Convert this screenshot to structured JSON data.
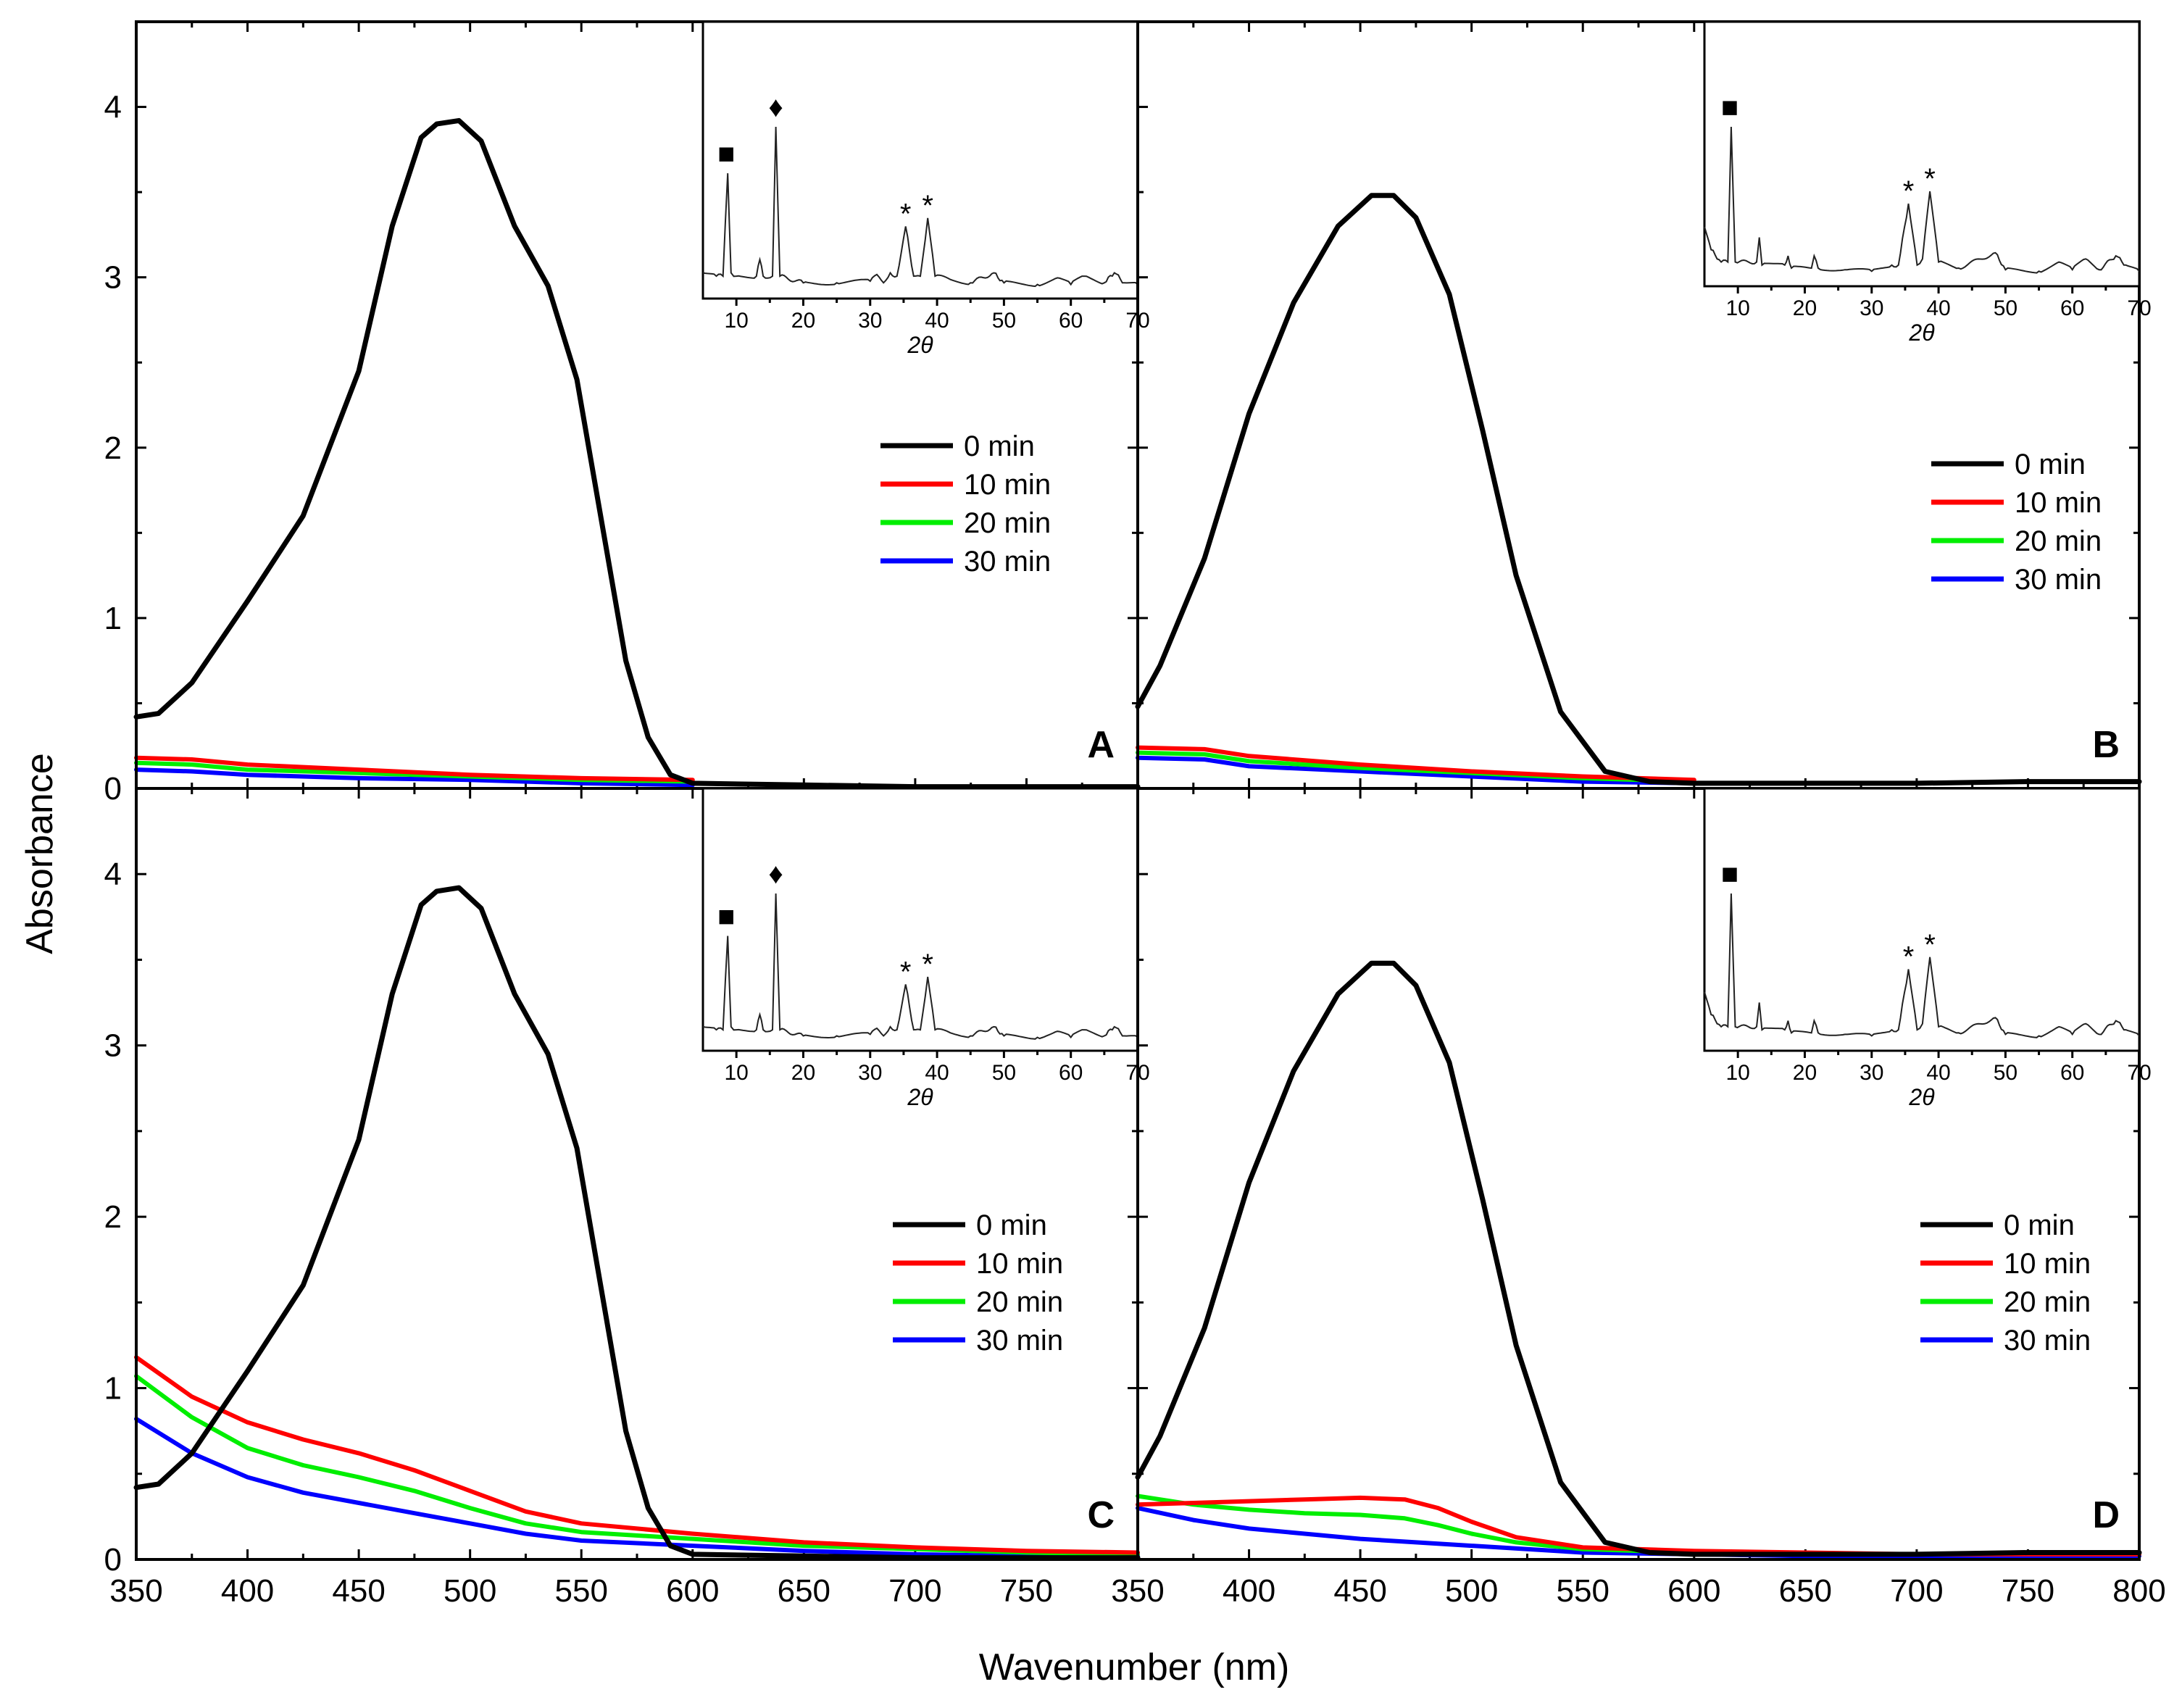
{
  "figure": {
    "xlabel": "Wavenumber (nm)",
    "ylabel": "Absorbance"
  },
  "colors": {
    "0 min": "#000000",
    "10 min": "#ff0000",
    "20 min": "#00ee00",
    "30 min": "#0000ff"
  },
  "chart_data": [
    {
      "panel": "A",
      "type": "line",
      "xlim": [
        350,
        800
      ],
      "ylim": [
        0,
        4.5
      ],
      "xticks": [],
      "yticks": [
        "0",
        "1",
        "2",
        "3",
        "4"
      ],
      "legend": [
        "0 min",
        "10 min",
        "20 min",
        "30 min"
      ],
      "series": [
        {
          "name": "0 min",
          "x": [
            350,
            360,
            375,
            400,
            425,
            450,
            465,
            478,
            485,
            495,
            505,
            520,
            535,
            548,
            560,
            570,
            580,
            590,
            600,
            650,
            700,
            800
          ],
          "y": [
            0.42,
            0.44,
            0.62,
            1.1,
            1.6,
            2.45,
            3.3,
            3.82,
            3.9,
            3.92,
            3.8,
            3.3,
            2.95,
            2.4,
            1.5,
            0.75,
            0.3,
            0.08,
            0.03,
            0.02,
            0.01,
            0.01
          ]
        },
        {
          "name": "10 min",
          "x": [
            350,
            375,
            400,
            450,
            500,
            550,
            600
          ],
          "y": [
            0.18,
            0.17,
            0.14,
            0.11,
            0.08,
            0.06,
            0.05
          ]
        },
        {
          "name": "20 min",
          "x": [
            350,
            375,
            400,
            450,
            500,
            550,
            600
          ],
          "y": [
            0.15,
            0.14,
            0.11,
            0.09,
            0.07,
            0.05,
            0.04
          ]
        },
        {
          "name": "30 min",
          "x": [
            350,
            375,
            400,
            450,
            500,
            550,
            600
          ],
          "y": [
            0.11,
            0.1,
            0.08,
            0.06,
            0.05,
            0.03,
            0.02
          ]
        }
      ],
      "inset": {
        "type": "line",
        "xlabel": "2θ",
        "xlim": [
          5,
          70
        ],
        "xticks": [
          "10",
          "20",
          "30",
          "40",
          "50",
          "60",
          "70"
        ],
        "x": [
          5,
          7,
          8,
          8.7,
          9.2,
          10,
          13,
          13.5,
          14,
          15.4,
          15.9,
          16.5,
          20,
          25,
          30,
          31,
          32,
          33,
          34,
          35.3,
          36.5,
          37.5,
          38.6,
          39.7,
          42,
          45,
          48.5,
          50,
          55,
          58,
          60,
          62,
          65,
          66.5,
          68,
          70
        ],
        "y": [
          0.12,
          0.1,
          0.1,
          0.72,
          0.12,
          0.1,
          0.1,
          0.2,
          0.1,
          0.1,
          1.0,
          0.1,
          0.06,
          0.06,
          0.07,
          0.11,
          0.06,
          0.12,
          0.1,
          0.4,
          0.1,
          0.1,
          0.45,
          0.1,
          0.08,
          0.06,
          0.12,
          0.06,
          0.05,
          0.09,
          0.05,
          0.1,
          0.06,
          0.12,
          0.06,
          0.05
        ],
        "markers": [
          {
            "symbol": "■",
            "x": 8.7,
            "y": 0.72
          },
          {
            "symbol": "♦",
            "x": 15.9,
            "y": 1.0
          },
          {
            "symbol": "*",
            "x": 35.3,
            "y": 0.4
          },
          {
            "symbol": "*",
            "x": 38.6,
            "y": 0.45
          }
        ]
      }
    },
    {
      "panel": "B",
      "type": "line",
      "xlim": [
        350,
        800
      ],
      "ylim": [
        0,
        4.5
      ],
      "xticks": [],
      "yticks": [],
      "legend": [
        "0 min",
        "10 min",
        "20 min",
        "30 min"
      ],
      "series": [
        {
          "name": "0 min",
          "x": [
            350,
            360,
            380,
            400,
            420,
            440,
            455,
            465,
            475,
            490,
            505,
            520,
            540,
            560,
            580,
            600,
            650,
            700,
            750,
            800
          ],
          "y": [
            0.48,
            0.72,
            1.35,
            2.2,
            2.85,
            3.3,
            3.48,
            3.48,
            3.35,
            2.9,
            2.1,
            1.25,
            0.45,
            0.1,
            0.04,
            0.03,
            0.03,
            0.03,
            0.04,
            0.04
          ]
        },
        {
          "name": "10 min",
          "x": [
            350,
            380,
            400,
            450,
            500,
            550,
            600
          ],
          "y": [
            0.24,
            0.23,
            0.19,
            0.14,
            0.1,
            0.07,
            0.05
          ]
        },
        {
          "name": "20 min",
          "x": [
            350,
            380,
            400,
            450,
            500,
            550,
            600
          ],
          "y": [
            0.21,
            0.2,
            0.16,
            0.12,
            0.09,
            0.06,
            0.04
          ]
        },
        {
          "name": "30 min",
          "x": [
            350,
            380,
            400,
            450,
            500,
            550,
            600
          ],
          "y": [
            0.18,
            0.17,
            0.13,
            0.1,
            0.07,
            0.04,
            0.03
          ]
        }
      ],
      "inset": {
        "type": "line",
        "xlabel": "2θ",
        "xlim": [
          5,
          70
        ],
        "xticks": [
          "10",
          "20",
          "30",
          "40",
          "50",
          "60",
          "70"
        ],
        "x": [
          5,
          6,
          7.5,
          8.5,
          9,
          9.6,
          12.8,
          13.2,
          13.6,
          17,
          17.5,
          18,
          21,
          21.4,
          22,
          26,
          30,
          33,
          34,
          35.5,
          36.8,
          37.6,
          38.7,
          40,
          43,
          48.5,
          50,
          55,
          58,
          60,
          62,
          64,
          66.5,
          68,
          70
        ],
        "y": [
          0.35,
          0.2,
          0.12,
          0.12,
          1.0,
          0.12,
          0.12,
          0.28,
          0.1,
          0.1,
          0.16,
          0.08,
          0.08,
          0.16,
          0.08,
          0.07,
          0.06,
          0.1,
          0.1,
          0.5,
          0.1,
          0.14,
          0.58,
          0.12,
          0.08,
          0.18,
          0.07,
          0.06,
          0.12,
          0.07,
          0.14,
          0.07,
          0.16,
          0.1,
          0.06
        ],
        "markers": [
          {
            "symbol": "■",
            "x": 9.0,
            "y": 1.0
          },
          {
            "symbol": "*",
            "x": 35.5,
            "y": 0.5
          },
          {
            "symbol": "*",
            "x": 38.7,
            "y": 0.58
          }
        ]
      }
    },
    {
      "panel": "C",
      "type": "line",
      "xlim": [
        350,
        800
      ],
      "ylim": [
        0,
        4.5
      ],
      "xticks": [
        "350",
        "400",
        "450",
        "500",
        "550",
        "600",
        "650",
        "700",
        "750"
      ],
      "yticks": [
        "0",
        "1",
        "2",
        "3",
        "4"
      ],
      "legend": [
        "0 min",
        "10 min",
        "20 min",
        "30 min"
      ],
      "series": [
        {
          "name": "0 min",
          "x": [
            350,
            360,
            375,
            400,
            425,
            450,
            465,
            478,
            485,
            495,
            505,
            520,
            535,
            548,
            560,
            570,
            580,
            590,
            600,
            650,
            700,
            800
          ],
          "y": [
            0.42,
            0.44,
            0.62,
            1.1,
            1.6,
            2.45,
            3.3,
            3.82,
            3.9,
            3.92,
            3.8,
            3.3,
            2.95,
            2.4,
            1.5,
            0.75,
            0.3,
            0.08,
            0.03,
            0.02,
            0.01,
            0.01
          ]
        },
        {
          "name": "10 min",
          "x": [
            350,
            375,
            400,
            425,
            450,
            475,
            500,
            525,
            550,
            600,
            650,
            700,
            750,
            800
          ],
          "y": [
            1.18,
            0.95,
            0.8,
            0.7,
            0.62,
            0.52,
            0.4,
            0.28,
            0.21,
            0.15,
            0.1,
            0.07,
            0.05,
            0.04
          ]
        },
        {
          "name": "20 min",
          "x": [
            350,
            375,
            400,
            425,
            450,
            475,
            500,
            525,
            550,
            600,
            650,
            700,
            750,
            800
          ],
          "y": [
            1.07,
            0.83,
            0.65,
            0.55,
            0.48,
            0.4,
            0.3,
            0.21,
            0.16,
            0.12,
            0.08,
            0.06,
            0.04,
            0.03
          ]
        },
        {
          "name": "30 min",
          "x": [
            350,
            375,
            400,
            425,
            450,
            475,
            500,
            525,
            550,
            600,
            650,
            700,
            750,
            800
          ],
          "y": [
            0.82,
            0.62,
            0.48,
            0.39,
            0.33,
            0.27,
            0.21,
            0.15,
            0.11,
            0.08,
            0.05,
            0.03,
            0.02,
            0.02
          ]
        }
      ],
      "inset": {
        "type": "line",
        "xlabel": "2θ",
        "xlim": [
          5,
          70
        ],
        "xticks": [
          "10",
          "20",
          "30",
          "40",
          "50",
          "60",
          "70"
        ],
        "x": [
          5,
          7,
          8,
          8.7,
          9.2,
          10,
          13,
          13.5,
          14,
          15.4,
          15.9,
          16.5,
          20,
          25,
          30,
          31,
          32,
          33,
          34,
          35.3,
          36.5,
          37.5,
          38.6,
          39.7,
          42,
          45,
          48.5,
          50,
          55,
          58,
          60,
          62,
          65,
          66.5,
          68,
          70
        ],
        "y": [
          0.12,
          0.1,
          0.1,
          0.72,
          0.12,
          0.1,
          0.1,
          0.2,
          0.1,
          0.1,
          1.0,
          0.1,
          0.06,
          0.06,
          0.07,
          0.11,
          0.06,
          0.12,
          0.1,
          0.4,
          0.1,
          0.1,
          0.45,
          0.1,
          0.08,
          0.06,
          0.12,
          0.06,
          0.05,
          0.09,
          0.05,
          0.1,
          0.06,
          0.12,
          0.06,
          0.05
        ],
        "markers": [
          {
            "symbol": "■",
            "x": 8.7,
            "y": 0.72
          },
          {
            "symbol": "♦",
            "x": 15.9,
            "y": 1.0
          },
          {
            "symbol": "*",
            "x": 35.3,
            "y": 0.4
          },
          {
            "symbol": "*",
            "x": 38.6,
            "y": 0.45
          }
        ]
      }
    },
    {
      "panel": "D",
      "type": "line",
      "xlim": [
        350,
        800
      ],
      "ylim": [
        0,
        4.5
      ],
      "xticks": [
        "350",
        "400",
        "450",
        "500",
        "550",
        "600",
        "650",
        "700",
        "750",
        "800"
      ],
      "yticks": [],
      "legend": [
        "0 min",
        "10 min",
        "20 min",
        "30 min"
      ],
      "series": [
        {
          "name": "0 min",
          "x": [
            350,
            360,
            380,
            400,
            420,
            440,
            455,
            465,
            475,
            490,
            505,
            520,
            540,
            560,
            580,
            600,
            650,
            700,
            750,
            800
          ],
          "y": [
            0.48,
            0.72,
            1.35,
            2.2,
            2.85,
            3.3,
            3.48,
            3.48,
            3.35,
            2.9,
            2.1,
            1.25,
            0.45,
            0.1,
            0.04,
            0.03,
            0.03,
            0.03,
            0.04,
            0.04
          ]
        },
        {
          "name": "10 min",
          "x": [
            350,
            375,
            400,
            425,
            450,
            470,
            485,
            500,
            520,
            550,
            600,
            650,
            700,
            800
          ],
          "y": [
            0.32,
            0.33,
            0.34,
            0.35,
            0.36,
            0.35,
            0.3,
            0.22,
            0.13,
            0.07,
            0.05,
            0.04,
            0.03,
            0.03
          ]
        },
        {
          "name": "20 min",
          "x": [
            350,
            375,
            400,
            425,
            450,
            470,
            485,
            500,
            520,
            550,
            600,
            650,
            700,
            800
          ],
          "y": [
            0.37,
            0.32,
            0.29,
            0.27,
            0.26,
            0.24,
            0.2,
            0.15,
            0.1,
            0.06,
            0.04,
            0.03,
            0.03,
            0.03
          ]
        },
        {
          "name": "30 min",
          "x": [
            350,
            375,
            400,
            425,
            450,
            475,
            500,
            525,
            550,
            600,
            650,
            700,
            800
          ],
          "y": [
            0.3,
            0.23,
            0.18,
            0.15,
            0.12,
            0.1,
            0.08,
            0.06,
            0.04,
            0.03,
            0.02,
            0.02,
            0.02
          ]
        }
      ],
      "inset": {
        "type": "line",
        "xlabel": "2θ",
        "xlim": [
          5,
          70
        ],
        "xticks": [
          "10",
          "20",
          "30",
          "40",
          "50",
          "60",
          "70"
        ],
        "x": [
          5,
          6,
          7.5,
          8.5,
          9,
          9.6,
          12.8,
          13.2,
          13.6,
          17,
          17.5,
          18,
          21,
          21.4,
          22,
          26,
          30,
          33,
          34,
          35.5,
          36.8,
          37.6,
          38.7,
          40,
          43,
          48.5,
          50,
          55,
          58,
          60,
          62,
          64,
          66.5,
          68,
          70
        ],
        "y": [
          0.35,
          0.2,
          0.12,
          0.12,
          1.0,
          0.12,
          0.12,
          0.28,
          0.1,
          0.1,
          0.16,
          0.08,
          0.08,
          0.16,
          0.08,
          0.07,
          0.06,
          0.1,
          0.1,
          0.5,
          0.1,
          0.14,
          0.58,
          0.12,
          0.08,
          0.18,
          0.07,
          0.06,
          0.12,
          0.07,
          0.14,
          0.07,
          0.16,
          0.1,
          0.06
        ],
        "markers": [
          {
            "symbol": "■",
            "x": 9.0,
            "y": 1.0
          },
          {
            "symbol": "*",
            "x": 35.5,
            "y": 0.5
          },
          {
            "symbol": "*",
            "x": 38.7,
            "y": 0.58
          }
        ]
      }
    }
  ]
}
